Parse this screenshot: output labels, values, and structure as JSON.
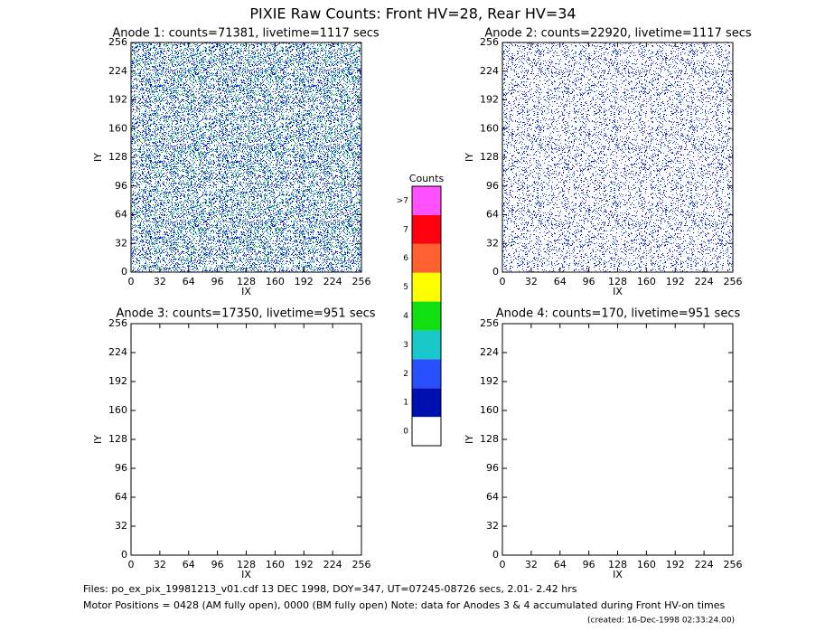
{
  "title": "PIXIE Raw Counts:  Front HV=28, Rear HV=34",
  "chart_data": [
    {
      "type": "heatmap",
      "title": "Anode 1: counts=71381, livetime=1117 secs",
      "xlabel": "IX",
      "ylabel": "IY",
      "xlim": [
        0,
        256
      ],
      "ylim": [
        0,
        256
      ],
      "xticks": [
        0,
        32,
        64,
        96,
        128,
        160,
        192,
        224,
        256
      ],
      "yticks": [
        0,
        32,
        64,
        96,
        128,
        160,
        192,
        224,
        256
      ]
    },
    {
      "type": "heatmap",
      "title": "Anode 2: counts=22920, livetime=1117 secs",
      "xlabel": "IX",
      "ylabel": "IY",
      "xlim": [
        0,
        256
      ],
      "ylim": [
        0,
        256
      ],
      "xticks": [
        0,
        32,
        64,
        96,
        128,
        160,
        192,
        224,
        256
      ],
      "yticks": [
        0,
        32,
        64,
        96,
        128,
        160,
        192,
        224,
        256
      ]
    },
    {
      "type": "heatmap",
      "title": "Anode 3: counts=17350, livetime=951 secs",
      "xlabel": "IX",
      "ylabel": "IY",
      "xlim": [
        0,
        256
      ],
      "ylim": [
        0,
        256
      ],
      "xticks": [
        0,
        32,
        64,
        96,
        128,
        160,
        192,
        224,
        256
      ],
      "yticks": [
        0,
        32,
        64,
        96,
        128,
        160,
        192,
        224,
        256
      ]
    },
    {
      "type": "heatmap",
      "title": "Anode 4: counts=170, livetime=951 secs",
      "xlabel": "IX",
      "ylabel": "IY",
      "xlim": [
        0,
        256
      ],
      "ylim": [
        0,
        256
      ],
      "xticks": [
        0,
        32,
        64,
        96,
        128,
        160,
        192,
        224,
        256
      ],
      "yticks": [
        0,
        32,
        64,
        96,
        128,
        160,
        192,
        224,
        256
      ]
    }
  ],
  "colorbar": {
    "title": "Counts",
    "levels": [
      "0",
      "1",
      "2",
      "3",
      "4",
      "5",
      "6",
      "7",
      ">7"
    ],
    "colors": [
      "#ffffff",
      "#0010b0",
      "#2850ff",
      "#18c8c8",
      "#10e010",
      "#ffff00",
      "#ff6030",
      "#ff0010",
      "#ff50ff"
    ]
  },
  "footer": [
    "Files: po_ex_pix_19981213_v01.cdf    13 DEC 1998, DOY=347, UT=07245-08726 secs,  2.01- 2.42 hrs",
    "Motor Positions = 0428 (AM fully open), 0000 (BM fully open)    Note: data for Anodes 3 & 4 accumulated during Front HV-on times"
  ],
  "created": "(created: 16-Dec-1998 02:33:24.00)"
}
